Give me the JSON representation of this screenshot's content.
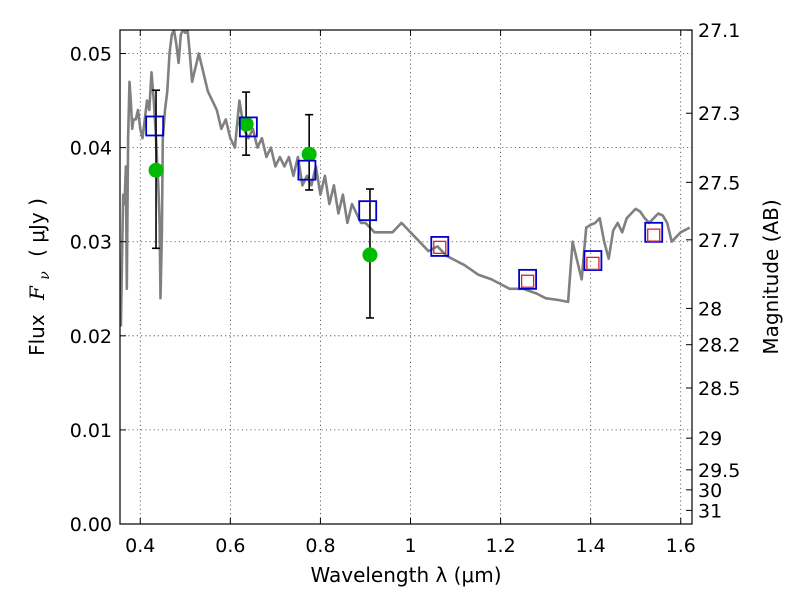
{
  "chart_data": {
    "type": "scatter",
    "title": "",
    "xlabel": "Wavelength  λ (μm)",
    "ylabel_text": "Flux",
    "ylabel_symbol": "F",
    "ylabel_subscript": "ν",
    "ylabel_unit": "( μJy )",
    "y2label": "Magnitude (AB)",
    "xlim": [
      0.355,
      1.625
    ],
    "ylim": [
      0.0,
      0.0525
    ],
    "grid": true,
    "x_ticks": [
      0.4,
      0.6,
      0.8,
      1.0,
      1.2,
      1.4,
      1.6
    ],
    "x_tick_labels": [
      "0.4",
      "0.6",
      "0.8",
      "1",
      "1.2",
      "1.4",
      "1.6"
    ],
    "y_ticks": [
      0.0,
      0.01,
      0.02,
      0.03,
      0.04,
      0.05
    ],
    "y_tick_labels": [
      "0.00",
      "0.01",
      "0.02",
      "0.03",
      "0.04",
      "0.05"
    ],
    "y2_ticks": [
      {
        "label": "27.1",
        "mag": 27.1
      },
      {
        "label": "27.3",
        "mag": 27.3
      },
      {
        "label": "27.5",
        "mag": 27.5
      },
      {
        "label": "27.7",
        "mag": 27.7
      },
      {
        "label": "28",
        "mag": 28.0
      },
      {
        "label": "28.2",
        "mag": 28.2
      },
      {
        "label": "28.5",
        "mag": 28.5
      },
      {
        "label": "29",
        "mag": 29.0
      },
      {
        "label": "29.5",
        "mag": 29.5
      },
      {
        "label": "30",
        "mag": 30.0
      },
      {
        "label": "31",
        "mag": 31.0
      }
    ],
    "model_spectrum": {
      "color": "#808080",
      "x": [
        0.357,
        0.36,
        0.362,
        0.365,
        0.368,
        0.37,
        0.373,
        0.376,
        0.379,
        0.382,
        0.385,
        0.39,
        0.395,
        0.4,
        0.405,
        0.41,
        0.415,
        0.42,
        0.425,
        0.43,
        0.435,
        0.44,
        0.443,
        0.445,
        0.448,
        0.45,
        0.455,
        0.46,
        0.465,
        0.47,
        0.475,
        0.48,
        0.485,
        0.49,
        0.495,
        0.5,
        0.505,
        0.51,
        0.515,
        0.52,
        0.525,
        0.53,
        0.54,
        0.55,
        0.56,
        0.57,
        0.58,
        0.59,
        0.6,
        0.61,
        0.62,
        0.63,
        0.64,
        0.65,
        0.66,
        0.67,
        0.68,
        0.69,
        0.7,
        0.71,
        0.72,
        0.73,
        0.74,
        0.75,
        0.76,
        0.77,
        0.78,
        0.79,
        0.8,
        0.81,
        0.82,
        0.83,
        0.84,
        0.85,
        0.86,
        0.87,
        0.88,
        0.89,
        0.9,
        0.92,
        0.94,
        0.96,
        0.98,
        1.0,
        1.02,
        1.04,
        1.06,
        1.08,
        1.1,
        1.12,
        1.15,
        1.18,
        1.2,
        1.22,
        1.25,
        1.28,
        1.3,
        1.33,
        1.35,
        1.36,
        1.37,
        1.38,
        1.39,
        1.4,
        1.41,
        1.42,
        1.43,
        1.44,
        1.45,
        1.46,
        1.47,
        1.48,
        1.49,
        1.5,
        1.51,
        1.52,
        1.53,
        1.54,
        1.55,
        1.56,
        1.57,
        1.58,
        1.6,
        1.62
      ],
      "y": [
        0.021,
        0.03,
        0.035,
        0.034,
        0.038,
        0.025,
        0.041,
        0.047,
        0.045,
        0.042,
        0.043,
        0.043,
        0.044,
        0.042,
        0.041,
        0.043,
        0.045,
        0.044,
        0.048,
        0.045,
        0.041,
        0.036,
        0.032,
        0.024,
        0.031,
        0.041,
        0.044,
        0.046,
        0.05,
        0.052,
        0.0525,
        0.051,
        0.049,
        0.052,
        0.0525,
        0.0522,
        0.0525,
        0.05,
        0.047,
        0.048,
        0.049,
        0.05,
        0.048,
        0.046,
        0.045,
        0.044,
        0.042,
        0.043,
        0.041,
        0.04,
        0.045,
        0.042,
        0.041,
        0.042,
        0.04,
        0.041,
        0.039,
        0.04,
        0.038,
        0.039,
        0.038,
        0.039,
        0.037,
        0.039,
        0.036,
        0.037,
        0.036,
        0.038,
        0.035,
        0.037,
        0.034,
        0.036,
        0.033,
        0.035,
        0.032,
        0.034,
        0.033,
        0.032,
        0.032,
        0.031,
        0.031,
        0.031,
        0.032,
        0.031,
        0.03,
        0.029,
        0.0295,
        0.0285,
        0.028,
        0.0275,
        0.0265,
        0.026,
        0.0255,
        0.025,
        0.025,
        0.0245,
        0.024,
        0.0238,
        0.0236,
        0.03,
        0.028,
        0.026,
        0.0315,
        0.0318,
        0.032,
        0.0325,
        0.03,
        0.0282,
        0.0312,
        0.032,
        0.031,
        0.0325,
        0.033,
        0.0335,
        0.0332,
        0.0325,
        0.032,
        0.0325,
        0.033,
        0.0328,
        0.032,
        0.03,
        0.031,
        0.0315
      ]
    },
    "observed_points": {
      "color": "#00bb00",
      "points": [
        {
          "x": 0.435,
          "y": 0.0376,
          "err_low": 0.0083,
          "err_high": 0.0085
        },
        {
          "x": 0.635,
          "y": 0.0425,
          "err_low": 0.0033,
          "err_high": 0.0034
        },
        {
          "x": 0.775,
          "y": 0.0393,
          "err_low": 0.0038,
          "err_high": 0.0042
        },
        {
          "x": 0.91,
          "y": 0.0286,
          "err_low": 0.0067,
          "err_high": 0.007
        }
      ]
    },
    "model_photometry": {
      "color": "#0000cc",
      "points": [
        {
          "x": 0.432,
          "y": 0.0423
        },
        {
          "x": 0.64,
          "y": 0.0422
        },
        {
          "x": 0.77,
          "y": 0.0376
        },
        {
          "x": 0.905,
          "y": 0.0333
        },
        {
          "x": 1.065,
          "y": 0.0295
        },
        {
          "x": 1.26,
          "y": 0.026
        },
        {
          "x": 1.405,
          "y": 0.028
        },
        {
          "x": 1.54,
          "y": 0.031
        }
      ]
    },
    "nir_photometry": {
      "color": "#dd2222",
      "points": [
        {
          "x": 1.065,
          "y": 0.0294
        },
        {
          "x": 1.26,
          "y": 0.0258
        },
        {
          "x": 1.405,
          "y": 0.0277
        },
        {
          "x": 1.54,
          "y": 0.0307
        }
      ]
    }
  }
}
